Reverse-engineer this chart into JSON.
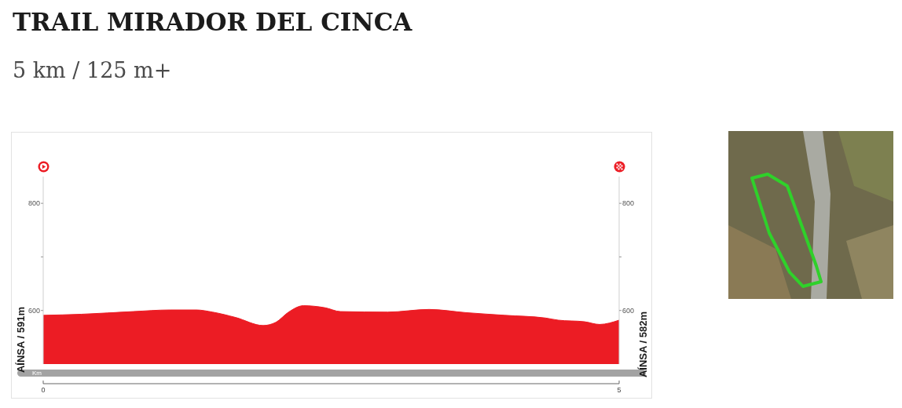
{
  "chart_data": {
    "type": "area",
    "title": "TRAIL MIRADOR DEL CINCA",
    "subtitle": "5 km / 125 m+",
    "xlabel": "Km",
    "x": [
      0,
      0.33,
      0.78,
      1.1,
      1.33,
      1.47,
      1.67,
      1.91,
      2.02,
      2.13,
      2.26,
      2.35,
      2.45,
      2.58,
      2.99,
      3.35,
      3.67,
      4.01,
      4.36,
      4.47,
      4.7,
      4.83,
      5
    ],
    "values": [
      591,
      593,
      598,
      601,
      601,
      597,
      587,
      572,
      578,
      597,
      609,
      608,
      605,
      598,
      597,
      602,
      596,
      591,
      586,
      582,
      579,
      574,
      582
    ],
    "color": "#ec1c24",
    "xlim": [
      0,
      5
    ],
    "xticks": [
      0,
      5
    ],
    "ylim": [
      500,
      850
    ],
    "yticks": [
      600,
      {
        "value": 700,
        "label": null
      },
      800
    ],
    "y2lim": [
      500,
      850
    ],
    "y2ticks": [
      600,
      {
        "value": 700,
        "label": null
      },
      800
    ],
    "annotations": [
      {
        "text": "AÍNSA / 591m",
        "x": 0,
        "y": 591
      },
      {
        "text": "AÍNSA / 582m",
        "x": 5,
        "y": 582
      }
    ]
  }
}
